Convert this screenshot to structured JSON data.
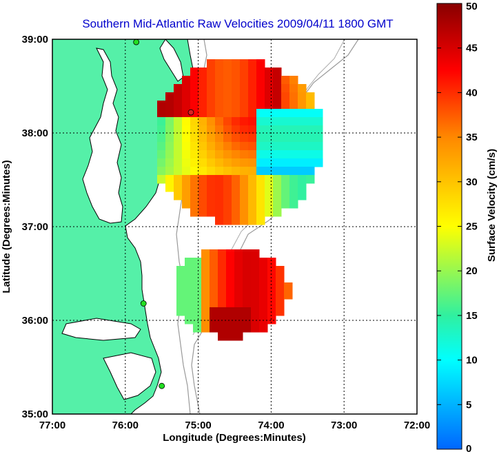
{
  "title": "Southern Mid-Atlantic Raw Velocities 2009/04/11 1800 GMT",
  "axes": {
    "xlabel": "Longitude (Degrees:Minutes)",
    "ylabel": "Latitude (Degrees:Minutes)",
    "x_range": [
      -77,
      -72
    ],
    "y_range": [
      35,
      39
    ],
    "x_ticks": [
      {
        "value": -77,
        "label": "77:00"
      },
      {
        "value": -76,
        "label": "76:00"
      },
      {
        "value": -75,
        "label": "75:00"
      },
      {
        "value": -74,
        "label": "74:00"
      },
      {
        "value": -73,
        "label": "73:00"
      },
      {
        "value": -72,
        "label": "72:00"
      }
    ],
    "y_ticks": [
      {
        "value": 39,
        "label": "39:00"
      },
      {
        "value": 38,
        "label": "38:00"
      },
      {
        "value": 37,
        "label": "37:00"
      },
      {
        "value": 36,
        "label": "36:00"
      },
      {
        "value": 35,
        "label": "35:00"
      }
    ],
    "grid": "dotted"
  },
  "colorbar": {
    "label": "Surface Velocity (cm/s)",
    "min": 0,
    "max": 50,
    "ticks": [
      {
        "value": 50,
        "label": "50"
      },
      {
        "value": 45,
        "label": "45"
      },
      {
        "value": 40,
        "label": "40"
      },
      {
        "value": 35,
        "label": "35"
      },
      {
        "value": 30,
        "label": "30"
      },
      {
        "value": 25,
        "label": "25"
      },
      {
        "value": 20,
        "label": "20"
      },
      {
        "value": 15,
        "label": "15"
      },
      {
        "value": 10,
        "label": "10"
      },
      {
        "value": 5,
        "label": "5"
      },
      {
        "value": 0,
        "label": "0"
      }
    ]
  },
  "colors": {
    "land": "#55f0a8",
    "water": "#ffffff",
    "coast": "#000000",
    "isobath": "#999999",
    "title": "#0000cc",
    "station": "#22dd22",
    "station_alt": "#dd2222"
  },
  "stations": [
    {
      "lon": -75.85,
      "lat": 38.97,
      "color": "#22dd22"
    },
    {
      "lon": -75.1,
      "lat": 38.22,
      "color": "#dd2222"
    },
    {
      "lon": -75.75,
      "lat": 36.18,
      "color": "#22dd22"
    },
    {
      "lon": -75.5,
      "lat": 35.3,
      "color": "#22dd22"
    }
  ]
}
